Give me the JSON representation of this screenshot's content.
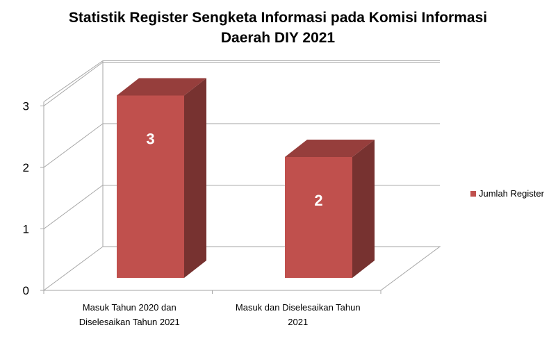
{
  "chart_data": {
    "type": "bar",
    "title_lines": [
      "Statistik Register Sengketa Informasi pada Komisi Informasi",
      "Daerah DIY 2021"
    ],
    "categories": [
      [
        "Masuk Tahun 2020 dan",
        "Diselesaikan Tahun 2021"
      ],
      [
        "Masuk dan Diselesaikan Tahun",
        "2021"
      ]
    ],
    "series": [
      {
        "name": "Jumlah Register",
        "values": [
          3,
          2
        ],
        "color": "#c0504d"
      }
    ],
    "ylim": [
      0,
      3
    ],
    "yticks": [
      "0",
      "1",
      "2",
      "3"
    ],
    "data_labels": [
      "3",
      "2"
    ],
    "grid": true,
    "legend_position": "right",
    "style": "3d-column"
  }
}
